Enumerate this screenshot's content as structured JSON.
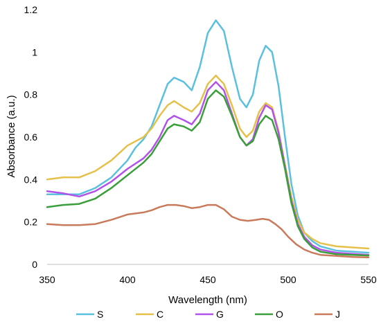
{
  "chart_data": {
    "type": "line",
    "title": "",
    "xlabel": "Wavelength (nm)",
    "ylabel": "Absorbance (a.u.)",
    "xlim": [
      350,
      550
    ],
    "ylim": [
      0,
      1.2
    ],
    "x_ticks": [
      "350",
      "400",
      "450",
      "500",
      "550"
    ],
    "y_ticks": [
      "0",
      "0.2",
      "0.4",
      "0.6",
      "0.8",
      "1",
      "1.2"
    ],
    "x_tick_values": [
      350,
      400,
      450,
      500,
      550
    ],
    "y_tick_values": [
      0,
      0.2,
      0.4,
      0.6,
      0.8,
      1,
      1.2
    ],
    "grid": false,
    "legend_position": "bottom",
    "series": [
      {
        "name": "S",
        "color": "#5BC0DE",
        "points": [
          [
            350,
            0.33
          ],
          [
            360,
            0.33
          ],
          [
            370,
            0.33
          ],
          [
            380,
            0.36
          ],
          [
            390,
            0.41
          ],
          [
            400,
            0.49
          ],
          [
            405,
            0.55
          ],
          [
            410,
            0.59
          ],
          [
            415,
            0.65
          ],
          [
            420,
            0.75
          ],
          [
            425,
            0.85
          ],
          [
            429,
            0.88
          ],
          [
            435,
            0.86
          ],
          [
            440,
            0.82
          ],
          [
            445,
            0.93
          ],
          [
            450,
            1.09
          ],
          [
            455,
            1.15
          ],
          [
            460,
            1.1
          ],
          [
            465,
            0.93
          ],
          [
            470,
            0.78
          ],
          [
            474,
            0.74
          ],
          [
            478,
            0.8
          ],
          [
            482,
            0.96
          ],
          [
            486,
            1.03
          ],
          [
            490,
            1.0
          ],
          [
            494,
            0.84
          ],
          [
            498,
            0.6
          ],
          [
            502,
            0.38
          ],
          [
            506,
            0.23
          ],
          [
            510,
            0.15
          ],
          [
            515,
            0.11
          ],
          [
            520,
            0.085
          ],
          [
            530,
            0.065
          ],
          [
            540,
            0.06
          ],
          [
            550,
            0.055
          ]
        ]
      },
      {
        "name": "C",
        "color": "#E5C04A",
        "points": [
          [
            350,
            0.4
          ],
          [
            360,
            0.41
          ],
          [
            370,
            0.41
          ],
          [
            380,
            0.44
          ],
          [
            390,
            0.49
          ],
          [
            400,
            0.56
          ],
          [
            410,
            0.6
          ],
          [
            415,
            0.64
          ],
          [
            420,
            0.7
          ],
          [
            425,
            0.75
          ],
          [
            429,
            0.77
          ],
          [
            435,
            0.74
          ],
          [
            440,
            0.72
          ],
          [
            445,
            0.76
          ],
          [
            450,
            0.85
          ],
          [
            455,
            0.89
          ],
          [
            460,
            0.85
          ],
          [
            465,
            0.75
          ],
          [
            470,
            0.64
          ],
          [
            474,
            0.6
          ],
          [
            478,
            0.63
          ],
          [
            482,
            0.72
          ],
          [
            486,
            0.76
          ],
          [
            490,
            0.74
          ],
          [
            494,
            0.63
          ],
          [
            498,
            0.47
          ],
          [
            502,
            0.32
          ],
          [
            506,
            0.21
          ],
          [
            510,
            0.15
          ],
          [
            515,
            0.12
          ],
          [
            520,
            0.1
          ],
          [
            530,
            0.085
          ],
          [
            540,
            0.08
          ],
          [
            550,
            0.075
          ]
        ]
      },
      {
        "name": "G",
        "color": "#B152E8",
        "points": [
          [
            350,
            0.345
          ],
          [
            360,
            0.335
          ],
          [
            370,
            0.32
          ],
          [
            380,
            0.345
          ],
          [
            390,
            0.39
          ],
          [
            400,
            0.45
          ],
          [
            410,
            0.5
          ],
          [
            415,
            0.54
          ],
          [
            420,
            0.6
          ],
          [
            425,
            0.68
          ],
          [
            429,
            0.7
          ],
          [
            435,
            0.68
          ],
          [
            440,
            0.66
          ],
          [
            445,
            0.71
          ],
          [
            450,
            0.82
          ],
          [
            455,
            0.86
          ],
          [
            460,
            0.82
          ],
          [
            465,
            0.71
          ],
          [
            470,
            0.6
          ],
          [
            474,
            0.56
          ],
          [
            478,
            0.59
          ],
          [
            482,
            0.69
          ],
          [
            486,
            0.75
          ],
          [
            490,
            0.73
          ],
          [
            494,
            0.62
          ],
          [
            498,
            0.46
          ],
          [
            502,
            0.3
          ],
          [
            506,
            0.19
          ],
          [
            510,
            0.13
          ],
          [
            515,
            0.09
          ],
          [
            520,
            0.07
          ],
          [
            530,
            0.055
          ],
          [
            540,
            0.05
          ],
          [
            550,
            0.045
          ]
        ]
      },
      {
        "name": "O",
        "color": "#3A9E3A",
        "points": [
          [
            350,
            0.27
          ],
          [
            360,
            0.28
          ],
          [
            370,
            0.285
          ],
          [
            380,
            0.31
          ],
          [
            390,
            0.36
          ],
          [
            400,
            0.42
          ],
          [
            410,
            0.48
          ],
          [
            415,
            0.52
          ],
          [
            420,
            0.58
          ],
          [
            425,
            0.64
          ],
          [
            429,
            0.66
          ],
          [
            435,
            0.65
          ],
          [
            440,
            0.63
          ],
          [
            445,
            0.67
          ],
          [
            450,
            0.78
          ],
          [
            455,
            0.82
          ],
          [
            460,
            0.79
          ],
          [
            465,
            0.7
          ],
          [
            470,
            0.6
          ],
          [
            474,
            0.56
          ],
          [
            478,
            0.58
          ],
          [
            482,
            0.66
          ],
          [
            486,
            0.7
          ],
          [
            490,
            0.68
          ],
          [
            494,
            0.59
          ],
          [
            498,
            0.45
          ],
          [
            502,
            0.29
          ],
          [
            506,
            0.18
          ],
          [
            510,
            0.12
          ],
          [
            515,
            0.08
          ],
          [
            520,
            0.06
          ],
          [
            530,
            0.048
          ],
          [
            540,
            0.045
          ],
          [
            550,
            0.042
          ]
        ]
      },
      {
        "name": "J",
        "color": "#C87A5A",
        "points": [
          [
            350,
            0.19
          ],
          [
            360,
            0.185
          ],
          [
            370,
            0.185
          ],
          [
            380,
            0.19
          ],
          [
            390,
            0.21
          ],
          [
            400,
            0.235
          ],
          [
            410,
            0.245
          ],
          [
            415,
            0.255
          ],
          [
            420,
            0.27
          ],
          [
            425,
            0.28
          ],
          [
            430,
            0.28
          ],
          [
            435,
            0.275
          ],
          [
            440,
            0.265
          ],
          [
            445,
            0.27
          ],
          [
            450,
            0.28
          ],
          [
            455,
            0.28
          ],
          [
            460,
            0.26
          ],
          [
            465,
            0.225
          ],
          [
            470,
            0.21
          ],
          [
            475,
            0.205
          ],
          [
            480,
            0.21
          ],
          [
            484,
            0.215
          ],
          [
            488,
            0.21
          ],
          [
            492,
            0.19
          ],
          [
            496,
            0.165
          ],
          [
            500,
            0.13
          ],
          [
            505,
            0.095
          ],
          [
            510,
            0.07
          ],
          [
            515,
            0.055
          ],
          [
            520,
            0.045
          ],
          [
            530,
            0.04
          ],
          [
            540,
            0.035
          ],
          [
            550,
            0.033
          ]
        ]
      }
    ]
  }
}
